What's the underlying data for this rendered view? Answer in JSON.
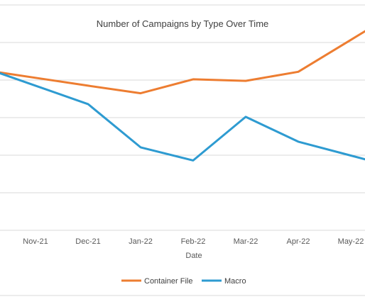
{
  "chart_data": {
    "type": "line",
    "title": "Number of Campaigns by Type Over Time",
    "xlabel": "Date",
    "ylabel": "",
    "categories": [
      "Nov-21",
      "Dec-21",
      "Jan-22",
      "Feb-22",
      "Mar-22",
      "Apr-22",
      "May-22"
    ],
    "series": [
      {
        "name": "Container File",
        "color": "#ED7D31",
        "values": [
          3.06,
          2.85,
          2.65,
          3.02,
          2.98,
          3.22,
          4.07
        ]
      },
      {
        "name": "Macro",
        "color": "#2E9BD1",
        "values": [
          2.85,
          2.36,
          1.21,
          0.86,
          2.02,
          1.36,
          0.99
        ]
      }
    ],
    "ylim": [
      -1,
      5
    ],
    "grid": true,
    "legend_position": "bottom"
  }
}
